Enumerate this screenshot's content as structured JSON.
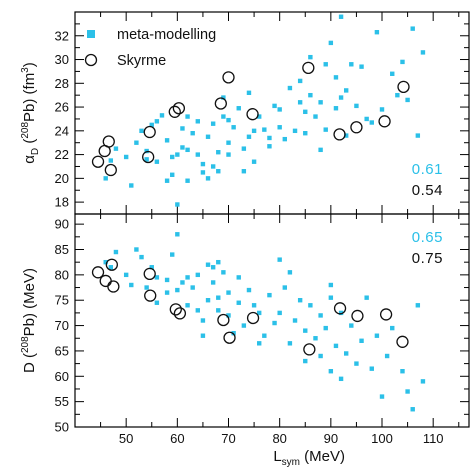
{
  "chart_data": {
    "type": "scatter",
    "colors": {
      "meta": "#2bc0e8",
      "skyrme": "#111111",
      "axis": "#000000"
    },
    "legend": {
      "placement": "top-left",
      "entries": [
        {
          "label": "meta-modelling",
          "marker": "filled-square",
          "color": "#2bc0e8"
        },
        {
          "label": "Skyrme",
          "marker": "open-circle",
          "color": "#111111"
        }
      ]
    },
    "xlabel_main": "L",
    "xlabel_sub": "sym",
    "xlabel_unit": " (MeV)",
    "xlim": [
      40,
      117
    ],
    "xticks": [
      50,
      60,
      70,
      80,
      90,
      100,
      110
    ],
    "panels": [
      {
        "id": "alpha_d",
        "ylabel_parts": [
          "α",
          "D",
          " (",
          "208",
          "Pb) (fm",
          "3",
          ")"
        ],
        "ylim": [
          17,
          34
        ],
        "yticks": [
          18,
          20,
          22,
          24,
          26,
          28,
          30,
          32
        ],
        "correlations": {
          "meta": "0.61",
          "skyrme": "0.54"
        },
        "series": [
          {
            "name": "meta-modelling",
            "points": [
              [
                46,
                20.0
              ],
              [
                47,
                21.5
              ],
              [
                48,
                22.5
              ],
              [
                50,
                21.8
              ],
              [
                51,
                19.4
              ],
              [
                52,
                23.0
              ],
              [
                53,
                24.0
              ],
              [
                54,
                22.3
              ],
              [
                54,
                21.6
              ],
              [
                55,
                24.5
              ],
              [
                56,
                24.8
              ],
              [
                56,
                21.4
              ],
              [
                58,
                19.8
              ],
              [
                58,
                23.2
              ],
              [
                59,
                20.3
              ],
              [
                59,
                21.8
              ],
              [
                60,
                22.0
              ],
              [
                60,
                17.8
              ],
              [
                61,
                22.6
              ],
              [
                61,
                24.2
              ],
              [
                62,
                25.2
              ],
              [
                62,
                22.4
              ],
              [
                63,
                23.8
              ],
              [
                64,
                24.8
              ],
              [
                64,
                22.0
              ],
              [
                65,
                21.2
              ],
              [
                65,
                20.5
              ],
              [
                66,
                23.5
              ],
              [
                66,
                20.0
              ],
              [
                67,
                21.0
              ],
              [
                67,
                24.6
              ],
              [
                68,
                22.2
              ],
              [
                68,
                20.6
              ],
              [
                69,
                25.2
              ],
              [
                69,
                26.8
              ],
              [
                70,
                23.0
              ],
              [
                70,
                22.0
              ],
              [
                71,
                24.3
              ],
              [
                72,
                25.9
              ],
              [
                73,
                22.5
              ],
              [
                73,
                20.6
              ],
              [
                74,
                23.5
              ],
              [
                74,
                27.2
              ],
              [
                75,
                24.0
              ],
              [
                75,
                21.4
              ],
              [
                76,
                25.2
              ],
              [
                77,
                24.1
              ],
              [
                78,
                22.7
              ],
              [
                79,
                26.1
              ],
              [
                80,
                24.3
              ],
              [
                80,
                25.8
              ],
              [
                81,
                23.3
              ],
              [
                82,
                27.6
              ],
              [
                83,
                24.0
              ],
              [
                84,
                28.2
              ],
              [
                85,
                25.6
              ],
              [
                85,
                23.8
              ],
              [
                86,
                30.2
              ],
              [
                86,
                27.0
              ],
              [
                87,
                25.2
              ],
              [
                88,
                26.4
              ],
              [
                89,
                29.6
              ],
              [
                89,
                24.1
              ],
              [
                90,
                31.4
              ],
              [
                91,
                28.5
              ],
              [
                91,
                25.9
              ],
              [
                92,
                33.6
              ],
              [
                92,
                26.8
              ],
              [
                93,
                27.4
              ],
              [
                93,
                23.6
              ],
              [
                94,
                29.6
              ],
              [
                95,
                26.1
              ],
              [
                96,
                29.4
              ],
              [
                97,
                25.0
              ],
              [
                98,
                24.7
              ],
              [
                99,
                32.3
              ],
              [
                100,
                25.8
              ],
              [
                102,
                28.8
              ],
              [
                103,
                27.0
              ],
              [
                104,
                29.8
              ],
              [
                105,
                26.6
              ],
              [
                106,
                32.6
              ],
              [
                107,
                23.6
              ],
              [
                108,
                30.6
              ],
              [
                70,
                24.9
              ],
              [
                78,
                23.4
              ],
              [
                84,
                26.4
              ],
              [
                62,
                19.8
              ],
              [
                57,
                25.3
              ],
              [
                88,
                22.4
              ]
            ]
          },
          {
            "name": "Skyrme",
            "points": [
              [
                44.5,
                21.4
              ],
              [
                45.8,
                22.3
              ],
              [
                46.6,
                23.1
              ],
              [
                47.0,
                20.7
              ],
              [
                54.3,
                21.8
              ],
              [
                54.6,
                23.9
              ],
              [
                59.5,
                25.6
              ],
              [
                60.3,
                25.9
              ],
              [
                68.5,
                26.3
              ],
              [
                70.0,
                28.5
              ],
              [
                74.7,
                25.4
              ],
              [
                85.6,
                29.3
              ],
              [
                91.7,
                23.7
              ],
              [
                95.0,
                24.3
              ],
              [
                100.5,
                24.8
              ],
              [
                104.2,
                27.7
              ]
            ]
          }
        ]
      },
      {
        "id": "d_energy",
        "ylabel_parts": [
          "D (",
          "208",
          "Pb) (MeV)"
        ],
        "ylim": [
          50,
          92
        ],
        "yticks": [
          50,
          55,
          60,
          65,
          70,
          75,
          80,
          85,
          90
        ],
        "correlations": {
          "meta": "0.65",
          "skyrme": "0.75"
        },
        "series": [
          {
            "name": "meta-modelling",
            "points": [
              [
                46,
                82.5
              ],
              [
                47,
                81.5
              ],
              [
                48,
                84.5
              ],
              [
                50,
                80.0
              ],
              [
                51,
                78.0
              ],
              [
                52,
                85.0
              ],
              [
                53,
                83.5
              ],
              [
                54,
                77.5
              ],
              [
                55,
                81.5
              ],
              [
                56,
                79.5
              ],
              [
                56,
                74.5
              ],
              [
                58,
                76.5
              ],
              [
                58,
                79.0
              ],
              [
                59,
                84.0
              ],
              [
                60,
                88.0
              ],
              [
                60,
                77.0
              ],
              [
                61,
                78.5
              ],
              [
                62,
                79.5
              ],
              [
                62,
                74.0
              ],
              [
                63,
                77.5
              ],
              [
                64,
                80.0
              ],
              [
                64,
                73.0
              ],
              [
                65,
                68.0
              ],
              [
                65,
                71.0
              ],
              [
                66,
                82.0
              ],
              [
                66,
                75.0
              ],
              [
                67,
                78.5
              ],
              [
                67,
                81.5
              ],
              [
                68,
                75.5
              ],
              [
                68,
                73.0
              ],
              [
                69,
                80.5
              ],
              [
                70,
                72.0
              ],
              [
                70,
                76.5
              ],
              [
                71,
                68.5
              ],
              [
                72,
                74.5
              ],
              [
                72,
                79.5
              ],
              [
                73,
                70.0
              ],
              [
                74,
                77.0
              ],
              [
                75,
                74.0
              ],
              [
                76,
                72.5
              ],
              [
                77,
                68.0
              ],
              [
                78,
                76.0
              ],
              [
                79,
                70.5
              ],
              [
                80,
                83.0
              ],
              [
                80,
                72.5
              ],
              [
                81,
                77.5
              ],
              [
                82,
                66.5
              ],
              [
                83,
                71.0
              ],
              [
                84,
                75.0
              ],
              [
                85,
                69.0
              ],
              [
                85,
                63.0
              ],
              [
                86,
                74.0
              ],
              [
                87,
                67.5
              ],
              [
                88,
                72.0
              ],
              [
                88,
                64.0
              ],
              [
                89,
                69.5
              ],
              [
                90,
                78.0
              ],
              [
                90,
                61.0
              ],
              [
                91,
                66.0
              ],
              [
                92,
                72.5
              ],
              [
                92,
                59.5
              ],
              [
                93,
                64.5
              ],
              [
                94,
                70.0
              ],
              [
                95,
                62.5
              ],
              [
                96,
                67.0
              ],
              [
                97,
                75.5
              ],
              [
                98,
                61.5
              ],
              [
                99,
                68.0
              ],
              [
                100,
                56.0
              ],
              [
                101,
                64.0
              ],
              [
                102,
                69.5
              ],
              [
                104,
                61.0
              ],
              [
                105,
                57.0
              ],
              [
                106,
                53.5
              ],
              [
                107,
                74.0
              ],
              [
                108,
                59.0
              ],
              [
                90,
                75.5
              ],
              [
                76,
                66.5
              ],
              [
                68,
                82.5
              ],
              [
                82,
                80.5
              ]
            ]
          },
          {
            "name": "Skyrme",
            "points": [
              [
                44.5,
                80.5
              ],
              [
                46.0,
                78.8
              ],
              [
                47.2,
                82.0
              ],
              [
                47.5,
                77.7
              ],
              [
                54.6,
                80.2
              ],
              [
                54.7,
                75.9
              ],
              [
                59.7,
                73.2
              ],
              [
                60.5,
                72.4
              ],
              [
                69.0,
                71.1
              ],
              [
                70.2,
                67.6
              ],
              [
                74.8,
                71.5
              ],
              [
                85.8,
                65.3
              ],
              [
                91.8,
                73.4
              ],
              [
                95.2,
                71.9
              ],
              [
                100.8,
                72.2
              ],
              [
                104.0,
                66.8
              ]
            ]
          }
        ]
      }
    ]
  }
}
